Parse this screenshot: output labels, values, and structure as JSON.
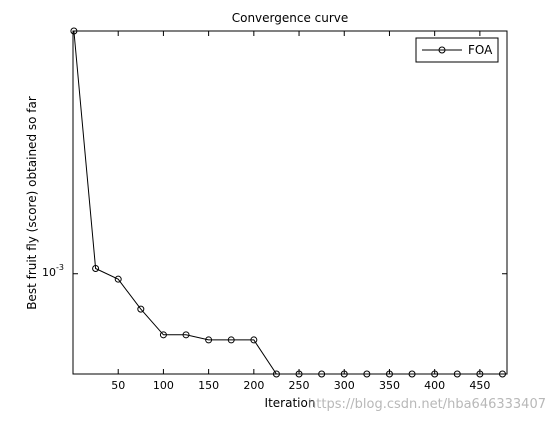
{
  "chart_data": {
    "type": "line",
    "title": "Convergence curve",
    "xlabel": "Iteration",
    "ylabel": "Best fruit fly (score) obtained so far",
    "xlim": [
      0,
      480
    ],
    "yscale": "log",
    "ylim": [
      0.00057,
      0.0039
    ],
    "x_ticks": [
      50,
      100,
      150,
      200,
      250,
      300,
      350,
      400,
      450
    ],
    "y_tick_label": {
      "base": "10",
      "exponent": "-3",
      "value": 0.001
    },
    "legend": "top-right",
    "grid": false,
    "series": [
      {
        "name": "FOA",
        "color": "#000000",
        "marker": "circle-open",
        "x": [
          1,
          25,
          50,
          75,
          100,
          125,
          150,
          175,
          200,
          225,
          250,
          275,
          300,
          325,
          350,
          375,
          400,
          425,
          450,
          475
        ],
        "y": [
          0.0039,
          0.00103,
          0.00097,
          0.00082,
          0.00071,
          0.00071,
          0.00069,
          0.00069,
          0.00069,
          0.00057,
          0.00057,
          0.00057,
          0.00057,
          0.00057,
          0.00057,
          0.00057,
          0.00057,
          0.00057,
          0.00057,
          0.00057
        ]
      }
    ]
  },
  "watermark": "https://blog.csdn.net/hba646333407"
}
